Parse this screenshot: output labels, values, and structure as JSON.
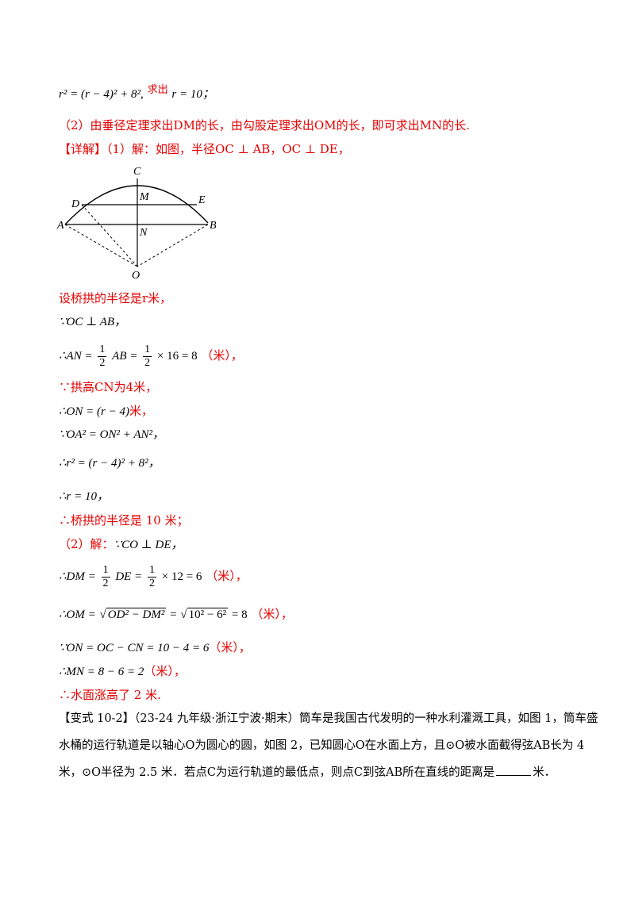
{
  "top": {
    "eq": "r² = (r − 4)² + 8²,",
    "red": "求出",
    "result": "r = 10；"
  },
  "hint2": "（2）由垂径定理求出DM的长，由勾股定理求出OM的长，即可求出MN的长.",
  "detail": {
    "tag": "【详解】",
    "text": "（1）解：如图，半径OC ⊥ AB，OC ⊥ DE，"
  },
  "figure_labels": {
    "C": "C",
    "M": "M",
    "E": "E",
    "D": "D",
    "A": "A",
    "N": "N",
    "B": "B",
    "O": "O"
  },
  "lines": {
    "l1": "设桥拱的半径是r米，",
    "l2": "∵OC ⊥ AB，",
    "l3_pre": "∴AN =",
    "l3_mid": "AB =",
    "l3_post": "× 16 = 8",
    "l3_unit": "（米），",
    "half_num": "1",
    "half_den": "2",
    "l4": "∵拱高CN为4米，",
    "l5_math": "∴ON = (r − 4)",
    "l5_unit": "米，",
    "l6": "∵OA² = ON² + AN²，",
    "l7": "∴r² = (r − 4)² + 8²，",
    "l8": "∴r = 10，",
    "l9": "∴桥拱的半径是 10 米；",
    "l10_red": "（2）解：",
    "l10_math": "∵CO ⊥ DE，",
    "l11_pre": "∴DM =",
    "l11_mid": "DE =",
    "l11_post": "× 12 = 6",
    "l11_unit": "（米），",
    "l12_pre": "∴OM =",
    "l12_rad1": "OD² − DM²",
    "l12_eq": "=",
    "l12_rad2": "10² − 6²",
    "l12_post": "= 8",
    "l12_unit": "（米），",
    "l13_math": "∵ON = OC − CN = 10 − 4 = 6",
    "l13_unit": "（米），",
    "l14_math": "∴MN = 8 − 6 = 2",
    "l14_unit": "（米），",
    "l15": "∴水面涨高了 2 米."
  },
  "variant": {
    "p1": "【变式 10-2】（23-24 九年级·浙江宁波·期末）筒车是我国古代发明的一种水利灌溉工具，如图 1，筒车盛",
    "p2": "水桶的运行轨道是以轴心O为圆心的圆，如图 2，已知圆心O在水面上方，且⊙O被水面截得弦AB长为 4",
    "p3_a": "米，⊙O半径为 2.5 米．若点C为运行轨道的最低点，则点C到弦AB所在直线的距离是",
    "p3_b": "米．"
  }
}
